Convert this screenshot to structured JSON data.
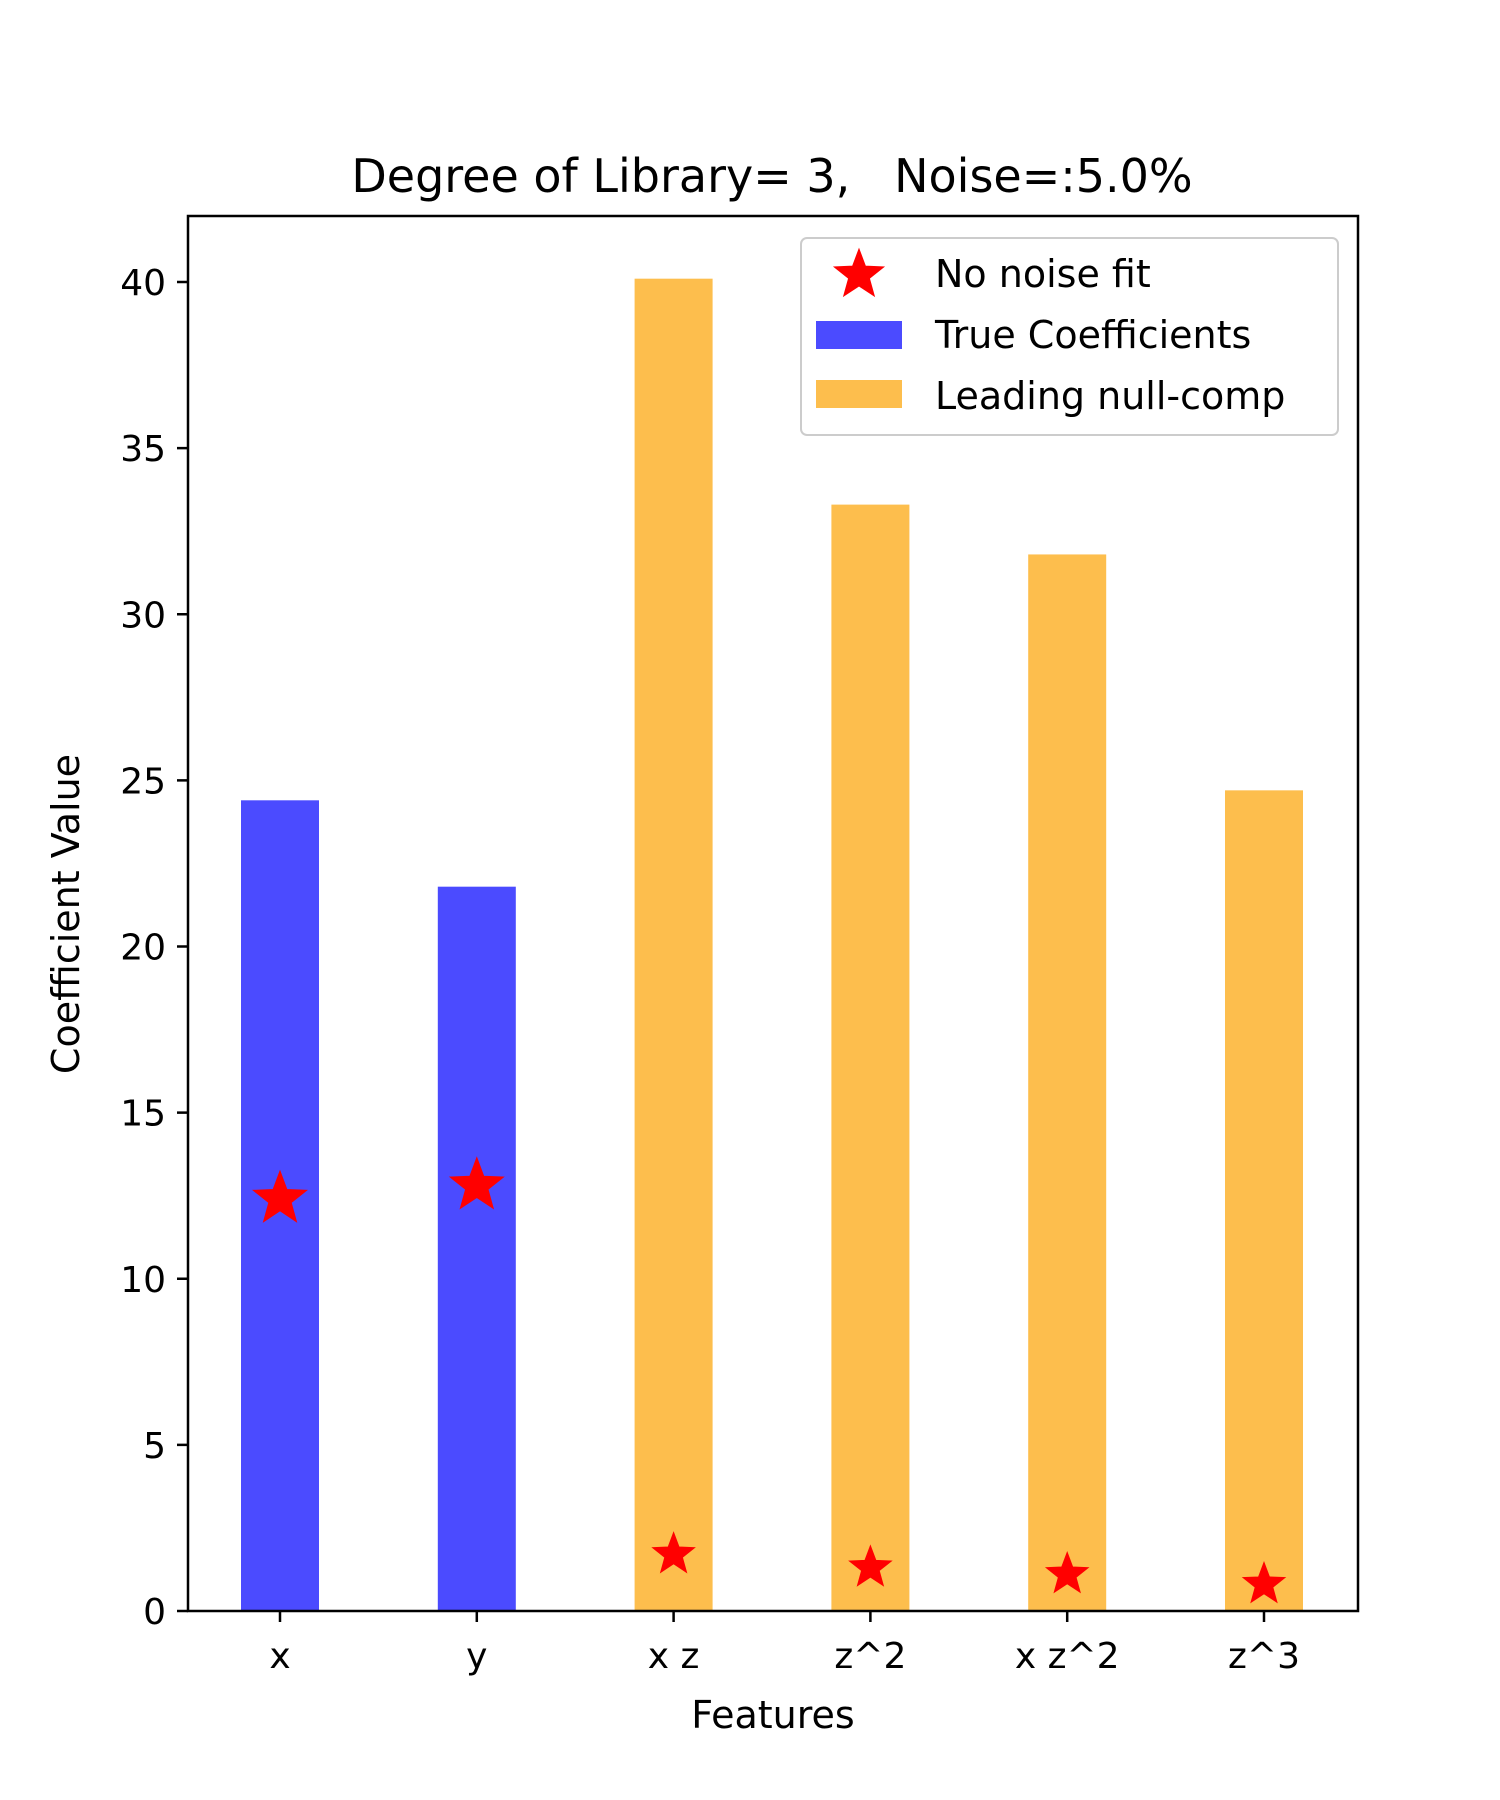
{
  "chart_data": {
    "type": "bar",
    "title": "Degree of Library= 3,   Noise=:5.0%",
    "xlabel": "Features",
    "ylabel": "Coefficient Value",
    "categories": [
      "x",
      "y",
      "x z",
      "z^2",
      "x z^2",
      "z^3"
    ],
    "ylim": [
      0,
      42
    ],
    "yticks": [
      0,
      5,
      10,
      15,
      20,
      25,
      30,
      35,
      40
    ],
    "grid": false,
    "legend_position": "upper right",
    "series": [
      {
        "name": "True Coefficients",
        "kind": "bar",
        "color": "#4b4bff",
        "values": [
          24.4,
          21.8,
          null,
          null,
          null,
          null
        ]
      },
      {
        "name": "Leading null-comp",
        "kind": "bar",
        "color": "#fdbe4d",
        "values": [
          null,
          null,
          40.1,
          33.3,
          31.8,
          24.7
        ]
      },
      {
        "name": "No noise fit",
        "kind": "marker",
        "marker": "star",
        "color": "#ff0000",
        "values": [
          12.4,
          12.8,
          1.7,
          1.3,
          1.1,
          0.8
        ]
      }
    ]
  }
}
